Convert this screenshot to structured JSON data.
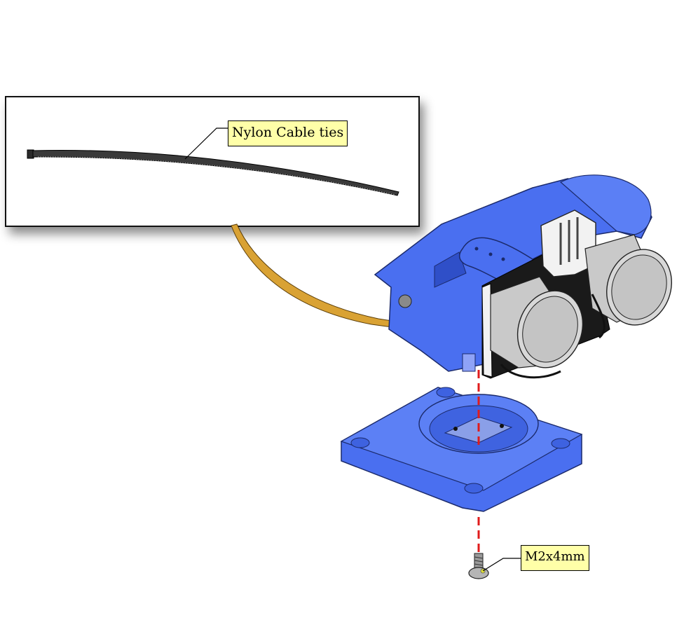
{
  "inset": {
    "part_label": "Nylon Cable ties"
  },
  "fastener": {
    "part_label": "M2x4mm"
  },
  "colors": {
    "bracket_blue": "#4a6ff0",
    "bracket_edge": "#1b2a6b",
    "sensor_gray": "#c9c9c9",
    "connector_white": "#f2f2f2",
    "cable_tie_strap": "#d9a234",
    "cable_tie_black": "#2a2a2a",
    "guide_line_red": "#e01b1b",
    "callout_fill": "#ffffa8"
  }
}
